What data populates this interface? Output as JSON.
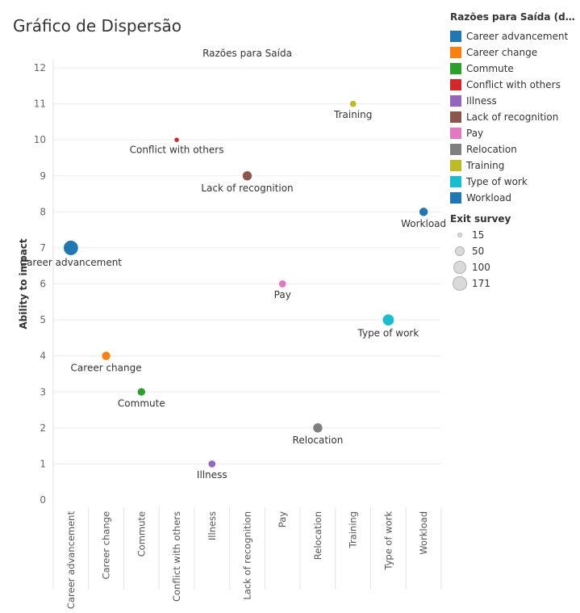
{
  "page": {
    "title": "Gráfico de Dispersão"
  },
  "chart_data": {
    "type": "scatter",
    "pane_title": "Razões para Saída",
    "ylabel": "Ability to impact",
    "ylim": [
      0,
      12
    ],
    "yticks": [
      0,
      1,
      2,
      3,
      4,
      5,
      6,
      7,
      8,
      9,
      10,
      11,
      12
    ],
    "categories": [
      "Career advancement",
      "Career change",
      "Commute",
      "Conflict with others",
      "Illness",
      "Lack of recognition",
      "Pay",
      "Relocation",
      "Training",
      "Type of work",
      "Workload"
    ],
    "points": [
      {
        "category": "Career advancement",
        "y": 7,
        "size": 171,
        "color": "#1f77b4"
      },
      {
        "category": "Career change",
        "y": 4,
        "size": 40,
        "color": "#ff7f0e"
      },
      {
        "category": "Commute",
        "y": 3,
        "size": 30,
        "color": "#2ca02c"
      },
      {
        "category": "Conflict with others",
        "y": 10,
        "size": 15,
        "color": "#d62728"
      },
      {
        "category": "Illness",
        "y": 1,
        "size": 25,
        "color": "#9467bd"
      },
      {
        "category": "Lack of recognition",
        "y": 9,
        "size": 50,
        "color": "#8c564b"
      },
      {
        "category": "Pay",
        "y": 6,
        "size": 25,
        "color": "#e377c2"
      },
      {
        "category": "Relocation",
        "y": 2,
        "size": 50,
        "color": "#7f7f7f"
      },
      {
        "category": "Training",
        "y": 11,
        "size": 20,
        "color": "#bcbd22"
      },
      {
        "category": "Type of work",
        "y": 5,
        "size": 85,
        "color": "#17becf"
      },
      {
        "category": "Workload",
        "y": 8,
        "size": 40,
        "color": "#1f77b4"
      }
    ],
    "grid": true,
    "legend_position": "right"
  },
  "legend": {
    "color_title": "Razões para Saída (dimen..",
    "items": [
      {
        "label": "Career advancement",
        "color": "#1f77b4"
      },
      {
        "label": "Career change",
        "color": "#ff7f0e"
      },
      {
        "label": "Commute",
        "color": "#2ca02c"
      },
      {
        "label": "Conflict with others",
        "color": "#d62728"
      },
      {
        "label": "Illness",
        "color": "#9467bd"
      },
      {
        "label": "Lack of recognition",
        "color": "#8c564b"
      },
      {
        "label": "Pay",
        "color": "#e377c2"
      },
      {
        "label": "Relocation",
        "color": "#7f7f7f"
      },
      {
        "label": "Training",
        "color": "#bcbd22"
      },
      {
        "label": "Type of work",
        "color": "#17becf"
      },
      {
        "label": "Workload",
        "color": "#1f77b4"
      }
    ],
    "size_title": "Exit survey",
    "size_items": [
      {
        "label": "15",
        "value": 15
      },
      {
        "label": "50",
        "value": 50
      },
      {
        "label": "100",
        "value": 100
      },
      {
        "label": "171",
        "value": 171
      }
    ]
  }
}
